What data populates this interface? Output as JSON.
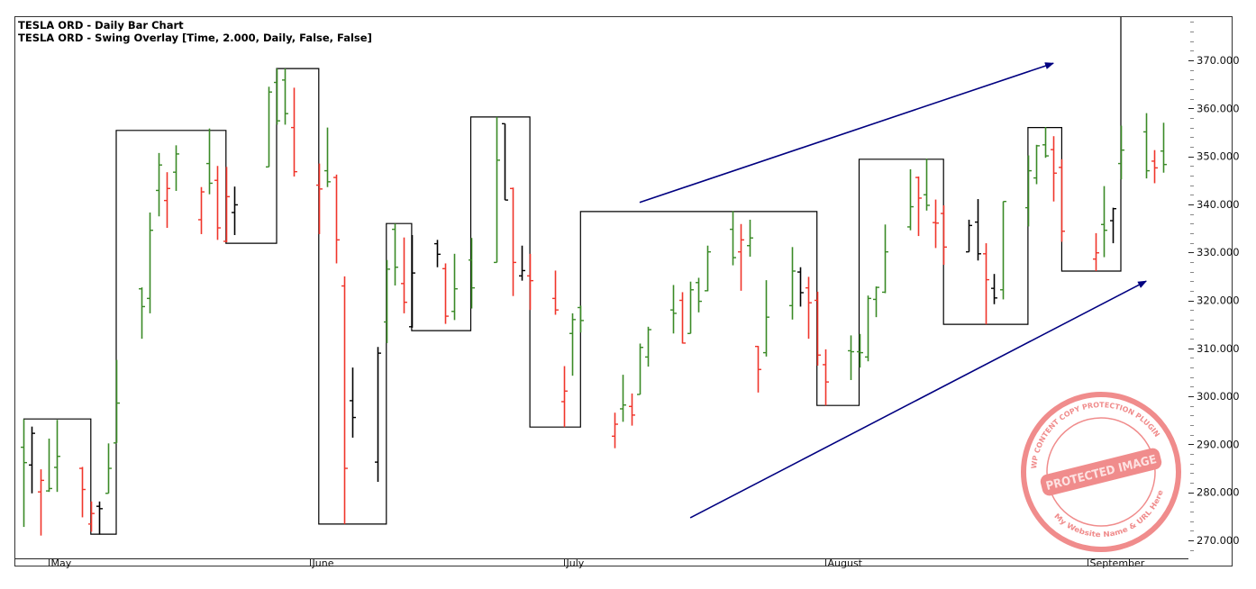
{
  "header": {
    "title": "TESLA ORD - Daily Bar Chart",
    "overlay_title": "TESLA ORD - Swing Overlay [Time, 2.000, Daily, False, False]"
  },
  "watermark": {
    "main": "PROTECTED IMAGE",
    "ring_top": "WP CONTENT COPY PROTECTION PLUGIN",
    "ring_bottom": "My Website Name & URL Here",
    "color": "#f08c8c"
  },
  "chart_data": {
    "type": "ohlc-bar",
    "title": "TESLA ORD - Daily Bar Chart",
    "ylim": [
      266.2,
      379.2
    ],
    "xlim": [
      "2025-04-25",
      "2025-09-30"
    ],
    "y_ticks": [
      "370.000",
      "360.000",
      "350.000",
      "340.000",
      "330.000",
      "320.000",
      "310.000",
      "300.000",
      "290.000",
      "280.000",
      "270.000"
    ],
    "y_tick_values": [
      370,
      360,
      350,
      340,
      330,
      320,
      310,
      300,
      290,
      280,
      270
    ],
    "x_labels": [
      {
        "label": "May",
        "date": "2025-05-01"
      },
      {
        "label": "June",
        "date": "2025-06-01"
      },
      {
        "label": "July",
        "date": "2025-07-01"
      },
      {
        "label": "August",
        "date": "2025-08-01"
      },
      {
        "label": "September",
        "date": "2025-09-01"
      }
    ],
    "colors": {
      "up": "#3a8a26",
      "down": "#f0352a",
      "neutral": "#000000",
      "swing": "#000000",
      "trend": "#000080"
    },
    "bar_fields": [
      "date",
      "open",
      "high",
      "low",
      "close",
      "color"
    ],
    "bars": [
      [
        "2025-04-28",
        289.4,
        295.2,
        272.8,
        286.2,
        "up"
      ],
      [
        "2025-04-29",
        285.7,
        293.7,
        279.8,
        292.3,
        "neutral"
      ],
      [
        "2025-04-30",
        280.1,
        284.8,
        271.0,
        282.5,
        "down"
      ],
      [
        "2025-05-01",
        280.3,
        291.2,
        280.1,
        280.8,
        "up"
      ],
      [
        "2025-05-02",
        285.2,
        295.1,
        280.1,
        287.5,
        "up"
      ],
      [
        "2025-05-05",
        285.0,
        285.3,
        274.8,
        280.6,
        "down"
      ],
      [
        "2025-05-06",
        273.4,
        278.1,
        271.8,
        275.6,
        "down"
      ],
      [
        "2025-05-07",
        277.1,
        278.1,
        271.2,
        276.6,
        "neutral"
      ],
      [
        "2025-05-08",
        279.8,
        290.2,
        279.8,
        285.0,
        "up"
      ],
      [
        "2025-05-09",
        290.3,
        307.6,
        290.3,
        298.6,
        "up"
      ],
      [
        "2025-05-12",
        322.4,
        322.7,
        312.0,
        318.7,
        "up"
      ],
      [
        "2025-05-13",
        320.4,
        338.3,
        317.3,
        334.6,
        "up"
      ],
      [
        "2025-05-14",
        342.9,
        350.7,
        337.5,
        348.2,
        "up"
      ],
      [
        "2025-05-15",
        340.8,
        346.7,
        335.1,
        343.3,
        "down"
      ],
      [
        "2025-05-16",
        346.7,
        352.3,
        342.8,
        350.5,
        "up"
      ],
      [
        "2025-05-19",
        336.8,
        343.6,
        333.8,
        342.6,
        "down"
      ],
      [
        "2025-05-20",
        348.5,
        355.8,
        342.1,
        344.4,
        "up"
      ],
      [
        "2025-05-21",
        345.0,
        348.0,
        332.6,
        335.1,
        "down"
      ],
      [
        "2025-05-22",
        332.3,
        347.8,
        332.1,
        341.6,
        "down"
      ],
      [
        "2025-05-23",
        338.3,
        343.7,
        333.6,
        339.9,
        "neutral"
      ],
      [
        "2025-05-27",
        347.8,
        364.5,
        347.8,
        363.4,
        "up"
      ],
      [
        "2025-05-28",
        365.4,
        368.3,
        356.6,
        357.4,
        "up"
      ],
      [
        "2025-05-29",
        365.9,
        368.3,
        356.6,
        358.9,
        "up"
      ],
      [
        "2025-05-30",
        356.0,
        364.3,
        345.8,
        346.8,
        "down"
      ],
      [
        "2025-06-02",
        344.0,
        348.5,
        333.8,
        343.2,
        "down"
      ],
      [
        "2025-06-03",
        347.0,
        356.0,
        343.6,
        344.7,
        "up"
      ],
      [
        "2025-06-04",
        345.6,
        346.2,
        327.7,
        332.6,
        "down"
      ],
      [
        "2025-06-05",
        323.0,
        325.0,
        273.4,
        285.0,
        "down"
      ],
      [
        "2025-06-06",
        299.1,
        306.0,
        291.4,
        295.6,
        "neutral"
      ],
      [
        "2025-06-09",
        286.3,
        310.3,
        282.2,
        309.0,
        "neutral"
      ],
      [
        "2025-06-10",
        315.5,
        328.4,
        311.1,
        326.5,
        "up"
      ],
      [
        "2025-06-11",
        334.8,
        336.0,
        323.1,
        326.9,
        "up"
      ],
      [
        "2025-06-12",
        323.5,
        333.1,
        317.3,
        319.6,
        "down"
      ],
      [
        "2025-06-13",
        314.5,
        333.6,
        314.3,
        325.7,
        "neutral"
      ],
      [
        "2025-06-16",
        331.8,
        332.6,
        326.9,
        329.6,
        "neutral"
      ],
      [
        "2025-06-17",
        326.6,
        327.7,
        315.1,
        316.7,
        "down"
      ],
      [
        "2025-06-18",
        317.7,
        329.7,
        315.9,
        322.4,
        "up"
      ],
      [
        "2025-06-20",
        328.4,
        333.0,
        318.3,
        322.6,
        "up"
      ],
      [
        "2025-06-23",
        327.9,
        358.2,
        327.9,
        349.2,
        "up"
      ],
      [
        "2025-06-24",
        356.8,
        356.8,
        340.9,
        340.9,
        "neutral"
      ],
      [
        "2025-06-25",
        343.3,
        343.5,
        320.9,
        327.9,
        "down"
      ],
      [
        "2025-06-26",
        325.1,
        331.4,
        324.1,
        326.2,
        "neutral"
      ],
      [
        "2025-06-27",
        325.1,
        329.7,
        318.0,
        324.1,
        "down"
      ],
      [
        "2025-06-30",
        320.4,
        326.2,
        317.0,
        318.0,
        "down"
      ],
      [
        "2025-07-01",
        298.9,
        306.3,
        293.6,
        301.1,
        "down"
      ],
      [
        "2025-07-02",
        313.1,
        317.3,
        304.3,
        316.0,
        "up"
      ],
      [
        "2025-07-03",
        318.5,
        318.9,
        313.3,
        315.8,
        "up"
      ],
      [
        "2025-07-07",
        291.7,
        296.6,
        289.2,
        294.2,
        "down"
      ],
      [
        "2025-07-08",
        297.4,
        304.5,
        294.7,
        298.2,
        "up"
      ],
      [
        "2025-07-09",
        297.9,
        300.6,
        293.9,
        296.1,
        "down"
      ],
      [
        "2025-07-10",
        300.4,
        311.0,
        300.4,
        310.2,
        "up"
      ],
      [
        "2025-07-11",
        308.2,
        314.5,
        306.2,
        313.9,
        "up"
      ],
      [
        "2025-07-14",
        318.0,
        323.2,
        313.1,
        317.3,
        "up"
      ],
      [
        "2025-07-15",
        320.0,
        321.7,
        311.0,
        311.1,
        "down"
      ],
      [
        "2025-07-16",
        313.1,
        323.9,
        313.1,
        322.2,
        "up"
      ],
      [
        "2025-07-17",
        323.7,
        324.7,
        317.5,
        319.8,
        "up"
      ],
      [
        "2025-07-18",
        322.0,
        331.4,
        321.9,
        330.1,
        "up"
      ],
      [
        "2025-07-21",
        334.8,
        338.6,
        327.3,
        328.9,
        "up"
      ],
      [
        "2025-07-22",
        330.1,
        335.9,
        322.0,
        332.6,
        "down"
      ],
      [
        "2025-07-23",
        331.4,
        336.8,
        329.1,
        333.0,
        "up"
      ],
      [
        "2025-07-24",
        310.4,
        310.5,
        300.8,
        305.6,
        "down"
      ],
      [
        "2025-07-25",
        309.1,
        324.2,
        308.3,
        316.5,
        "up"
      ],
      [
        "2025-07-28",
        318.9,
        331.1,
        316.0,
        326.1,
        "up"
      ],
      [
        "2025-07-29",
        325.9,
        326.9,
        318.7,
        321.6,
        "neutral"
      ],
      [
        "2025-07-30",
        322.6,
        324.9,
        312.0,
        319.5,
        "down"
      ],
      [
        "2025-07-31",
        320.0,
        321.8,
        306.4,
        308.6,
        "down"
      ],
      [
        "2025-08-01",
        306.6,
        309.8,
        298.1,
        303.0,
        "down"
      ],
      [
        "2025-08-04",
        309.5,
        312.7,
        303.4,
        309.3,
        "up"
      ],
      [
        "2025-08-05",
        309.3,
        313.0,
        306.0,
        309.1,
        "up"
      ],
      [
        "2025-08-06",
        308.2,
        321.0,
        307.3,
        320.4,
        "up"
      ],
      [
        "2025-08-07",
        320.2,
        322.9,
        316.5,
        322.7,
        "up"
      ],
      [
        "2025-08-08",
        321.7,
        335.8,
        321.5,
        330.1,
        "up"
      ],
      [
        "2025-08-11",
        335.3,
        347.3,
        334.6,
        339.5,
        "up"
      ],
      [
        "2025-08-12",
        345.6,
        345.8,
        333.4,
        341.3,
        "down"
      ],
      [
        "2025-08-13",
        342.0,
        349.5,
        338.7,
        339.8,
        "up"
      ],
      [
        "2025-08-14",
        336.2,
        341.0,
        330.9,
        336.1,
        "down"
      ],
      [
        "2025-08-15",
        338.1,
        339.8,
        327.4,
        331.1,
        "down"
      ],
      [
        "2025-08-18",
        330.1,
        336.8,
        330.1,
        335.6,
        "neutral"
      ],
      [
        "2025-08-19",
        336.3,
        341.1,
        328.3,
        329.7,
        "neutral"
      ],
      [
        "2025-08-20",
        329.7,
        331.9,
        315.0,
        324.3,
        "down"
      ],
      [
        "2025-08-21",
        322.5,
        325.5,
        319.2,
        320.5,
        "neutral"
      ],
      [
        "2025-08-22",
        322.2,
        340.6,
        320.2,
        340.6,
        "up"
      ],
      [
        "2025-08-25",
        339.3,
        350.2,
        335.4,
        347.0,
        "up"
      ],
      [
        "2025-08-26",
        345.5,
        352.4,
        344.2,
        352.2,
        "up"
      ],
      [
        "2025-08-27",
        352.4,
        356.1,
        349.7,
        350.1,
        "up"
      ],
      [
        "2025-08-28",
        351.4,
        354.2,
        340.6,
        346.5,
        "down"
      ],
      [
        "2025-08-29",
        347.7,
        349.4,
        332.2,
        334.4,
        "down"
      ],
      [
        "2025-09-02",
        328.6,
        334.0,
        326.1,
        329.9,
        "down"
      ],
      [
        "2025-09-03",
        335.8,
        343.8,
        329.0,
        334.6,
        "up"
      ],
      [
        "2025-09-04",
        336.6,
        339.3,
        331.9,
        339.1,
        "neutral"
      ],
      [
        "2025-09-05",
        348.5,
        356.4,
        345.2,
        351.3,
        "up"
      ],
      [
        "2025-09-08",
        355.1,
        359.0,
        345.4,
        347.0,
        "up"
      ],
      [
        "2025-09-09",
        349.0,
        351.3,
        344.4,
        347.6,
        "down"
      ],
      [
        "2025-09-10",
        351.1,
        357.0,
        346.6,
        348.3,
        "up"
      ]
    ],
    "swing_overlay": [
      [
        "2025-04-28",
        295.3
      ],
      [
        "2025-05-06",
        271.3
      ],
      [
        "2025-05-09",
        355.4
      ],
      [
        "2025-05-22",
        331.9
      ],
      [
        "2025-05-28",
        368.3
      ],
      [
        "2025-06-02",
        273.4
      ],
      [
        "2025-06-10",
        336.0
      ],
      [
        "2025-06-13",
        313.7
      ],
      [
        "2025-06-20",
        358.2
      ],
      [
        "2025-06-27",
        293.6
      ],
      [
        "2025-07-03",
        338.5
      ],
      [
        "2025-07-31",
        298.1
      ],
      [
        "2025-08-05",
        349.4
      ],
      [
        "2025-08-15",
        315.0
      ],
      [
        "2025-08-25",
        356.0
      ],
      [
        "2025-08-29",
        326.1
      ],
      [
        "2025-09-05",
        385.0
      ]
    ],
    "trend_arrows": [
      {
        "from": [
          "2025-07-10",
          340.4
        ],
        "to": [
          "2025-08-28",
          369.4
        ]
      },
      {
        "from": [
          "2025-07-16",
          274.7
        ],
        "to": [
          "2025-09-08",
          324.0
        ]
      }
    ]
  }
}
